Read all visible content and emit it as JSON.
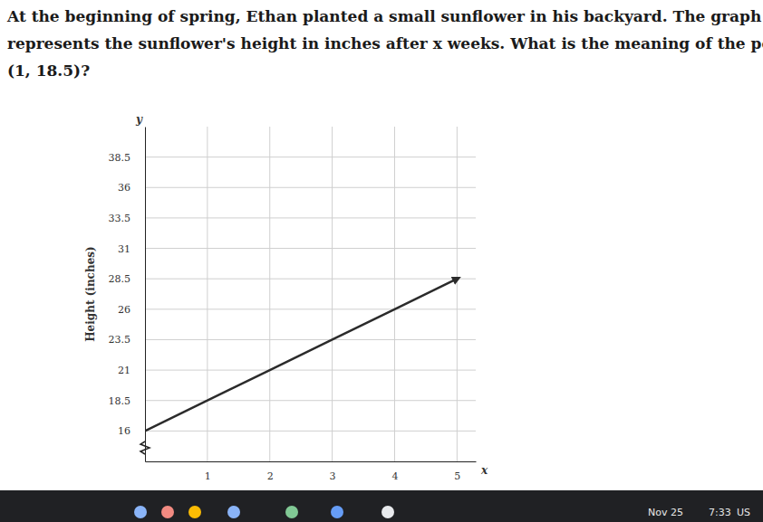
{
  "question": {
    "lines": [
      "At the beginning of spring, Ethan planted a small sunflower in his backyard. The graph below",
      "represents the sunflower's height in inches after x weeks. What is the meaning of the point",
      "(1, 18.5)?"
    ]
  },
  "chart_data": {
    "type": "line",
    "x": [
      0,
      1,
      2,
      3,
      4,
      5
    ],
    "values": [
      16,
      18.5,
      21,
      23.5,
      26,
      28.5
    ],
    "color": "#2b2b2b",
    "line_style": "solid",
    "xlim": [
      0,
      5.3
    ],
    "ylim": [
      13.5,
      41
    ],
    "xticks": [
      1,
      2,
      3,
      4,
      5
    ],
    "yticks": [
      16,
      18.5,
      21,
      23.5,
      26,
      28.5,
      31,
      33.5,
      36,
      38.5
    ],
    "grid": true,
    "xlabel": "x",
    "ylabel": "Height (inches)",
    "y_axis_name": "y"
  },
  "taskbar": {
    "date": "Nov 25",
    "time": "7:33",
    "region": "US"
  }
}
